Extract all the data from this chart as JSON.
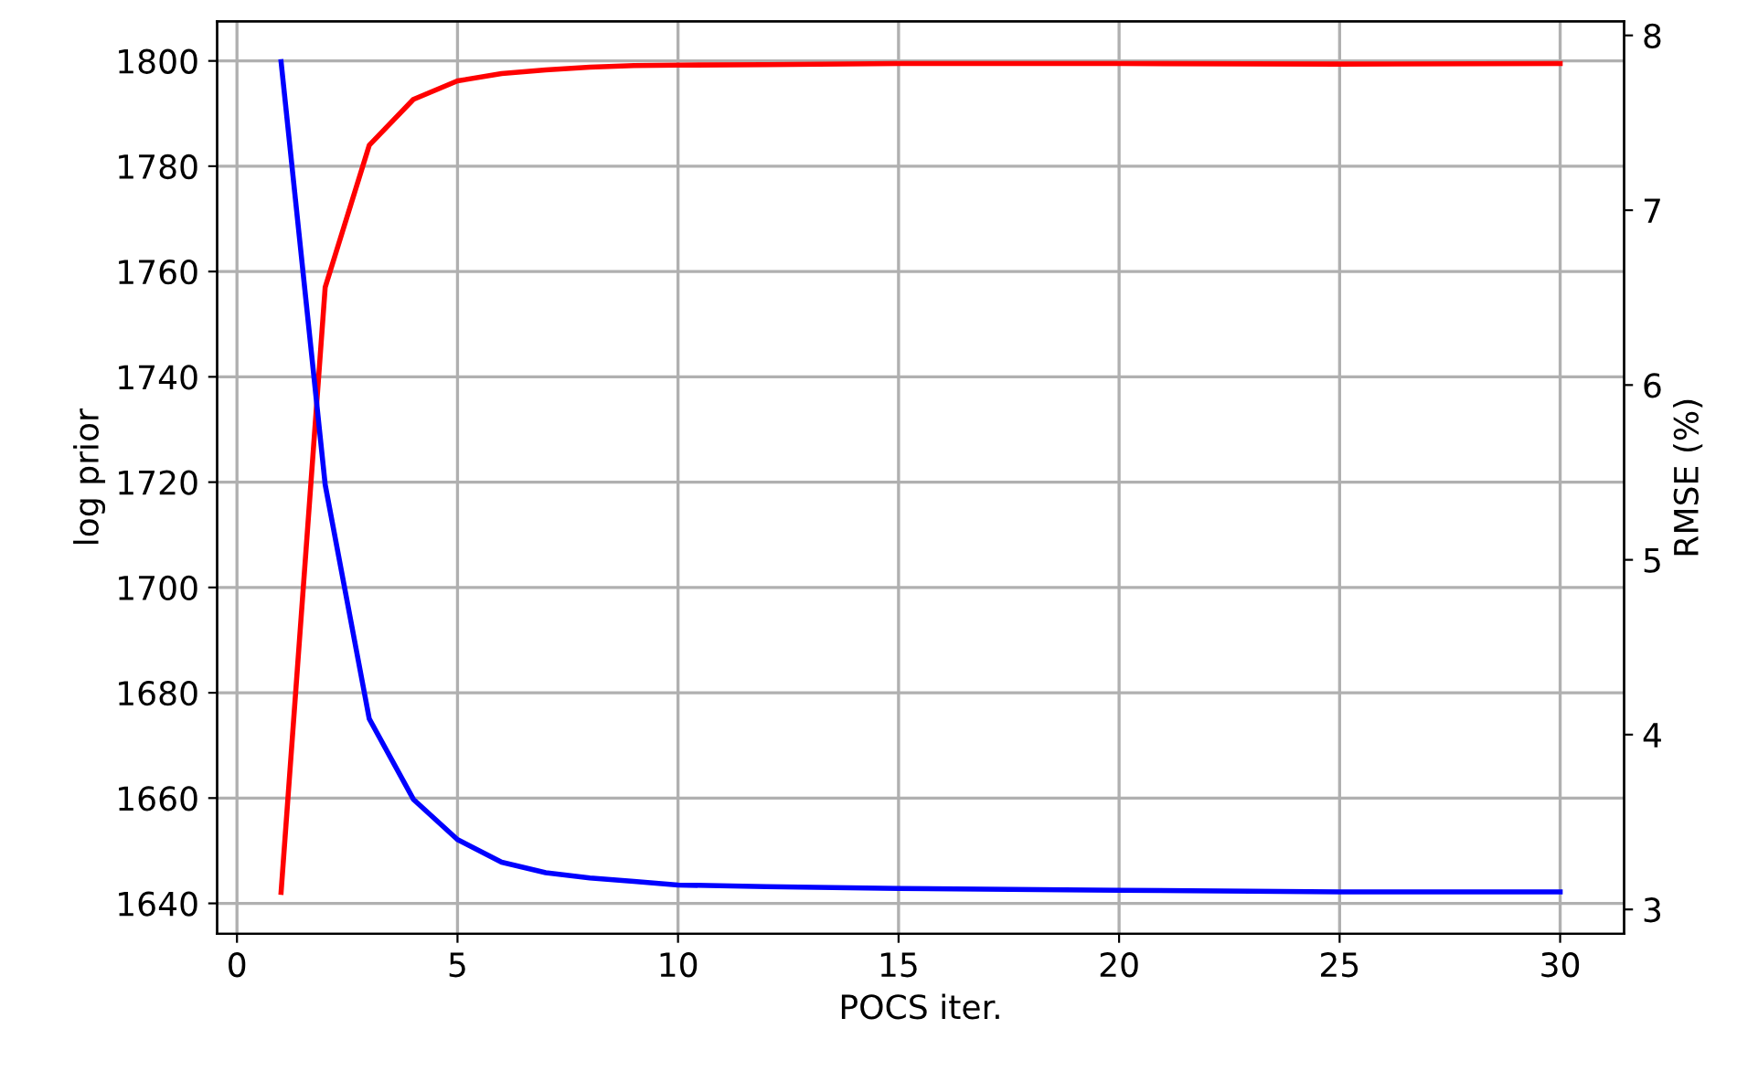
{
  "chart_data": {
    "type": "line",
    "xlabel": "POCS iter.",
    "ylabel": "log prior",
    "y2label": "RMSE (%)",
    "x": [
      1,
      2,
      3,
      4,
      5,
      6,
      7,
      8,
      9,
      10,
      12,
      15,
      20,
      25,
      30
    ],
    "series": [
      {
        "color": "#ff0000",
        "values": [
          1642.1,
          1757,
          1784,
          1792.7,
          1796.2,
          1797.6,
          1798.3,
          1798.8,
          1799.1,
          1799.2,
          1799.3,
          1799.5,
          1799.5,
          1799.4,
          1799.5
        ]
      },
      {
        "color": "#0000ff",
        "axis": "y2",
        "values": [
          7.85,
          5.43,
          4.09,
          3.63,
          3.4,
          3.27,
          3.21,
          3.18,
          3.16,
          3.14,
          3.13,
          3.12,
          3.11,
          3.1,
          3.1
        ]
      }
    ],
    "xlim": [
      -0.45,
      31.45
    ],
    "xticks": [
      0,
      5,
      10,
      15,
      20,
      25,
      30
    ],
    "ylim": [
      1634.2,
      1807.5
    ],
    "yticks": [
      1640,
      1660,
      1680,
      1700,
      1720,
      1740,
      1760,
      1780,
      1800
    ],
    "y2lim": [
      2.86,
      8.08
    ],
    "y2ticks": [
      3,
      4,
      5,
      6,
      7,
      8
    ],
    "grid": true,
    "legend": false
  }
}
